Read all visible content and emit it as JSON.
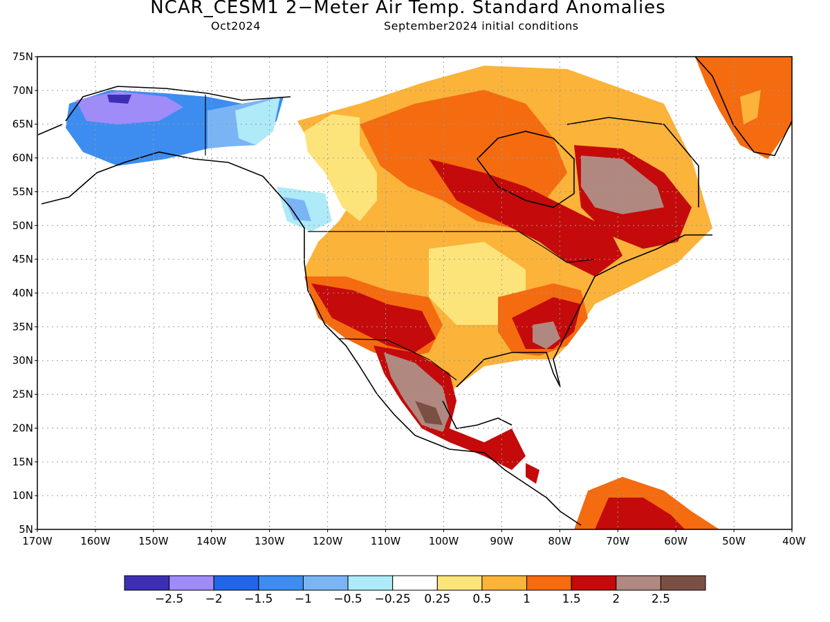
{
  "header": {
    "title": "NCAR_CESM1 2−Meter Air Temp. Standard Anomalies",
    "valid_month": "Oct2024",
    "init_conditions": "September2024 initial conditions"
  },
  "map": {
    "projection": "cylindrical",
    "lon_range": [
      -170,
      -40
    ],
    "lat_range": [
      5,
      75
    ],
    "lon_ticks": [
      "170W",
      "160W",
      "150W",
      "140W",
      "130W",
      "120W",
      "110W",
      "100W",
      "90W",
      "80W",
      "70W",
      "60W",
      "50W",
      "40W"
    ],
    "lat_ticks": [
      "75N",
      "70N",
      "65N",
      "60N",
      "55N",
      "50N",
      "45N",
      "40N",
      "35N",
      "30N",
      "25N",
      "20N",
      "15N",
      "10N",
      "5N"
    ],
    "grid": "dotted"
  },
  "legend": {
    "colors": [
      "#3c2fb4",
      "#9f8cf8",
      "#2166e8",
      "#3d8df0",
      "#7bb4f5",
      "#aeeaf8",
      "#ffffff",
      "#fde47a",
      "#fbb33a",
      "#f46b10",
      "#c40a0a",
      "#b08880",
      "#7a5045"
    ],
    "labels": [
      "−2.5",
      "−2",
      "−1.5",
      "−1",
      "−0.5",
      "−0.25",
      "0.25",
      "0.5",
      "1",
      "1.5",
      "2",
      "2.5"
    ]
  }
}
